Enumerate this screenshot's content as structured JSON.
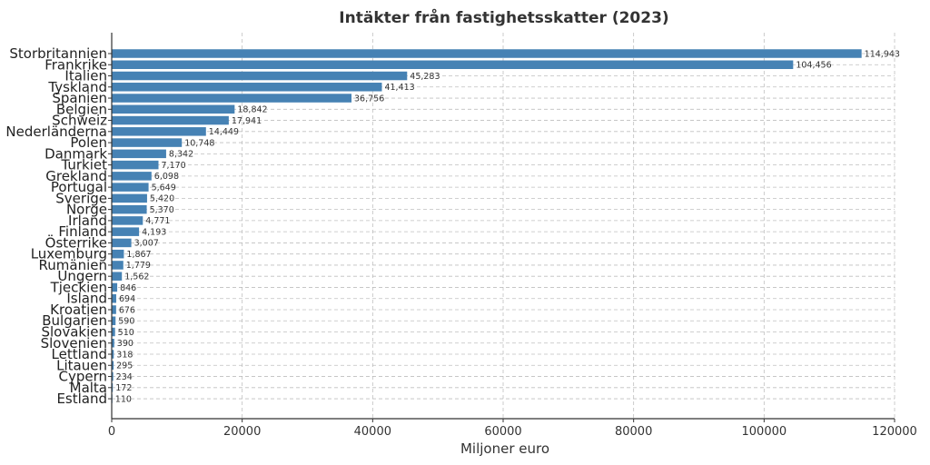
{
  "chart_data": {
    "type": "bar",
    "orientation": "horizontal",
    "title": "Intäkter från fastighetsskatter (2023)",
    "xlabel": "Miljoner euro",
    "ylabel": "",
    "xlim": [
      0,
      120000
    ],
    "xticks": [
      "0",
      "20000",
      "40000",
      "60000",
      "80000",
      "100000",
      "120000"
    ],
    "grid": true,
    "bar_color": "#4682b4",
    "categories": [
      "Storbritannien",
      "Frankrike",
      "Italien",
      "Tyskland",
      "Spanien",
      "Belgien",
      "Schweiz",
      "Nederländerna",
      "Polen",
      "Danmark",
      "Turkiet",
      "Grekland",
      "Portugal",
      "Sverige",
      "Norge",
      "Irland",
      "Finland",
      "Österrike",
      "Luxemburg",
      "Rumänien",
      "Ungern",
      "Tjeckien",
      "Island",
      "Kroatien",
      "Bulgarien",
      "Slovakien",
      "Slovenien",
      "Lettland",
      "Litauen",
      "Cypern",
      "Malta",
      "Estland"
    ],
    "values": [
      114943,
      104456,
      45283,
      41413,
      36756,
      18842,
      17941,
      14449,
      10748,
      8342,
      7170,
      6098,
      5649,
      5420,
      5370,
      4771,
      4193,
      3007,
      1867,
      1779,
      1562,
      846,
      694,
      676,
      590,
      510,
      390,
      318,
      295,
      234,
      172,
      110
    ],
    "data_labels": [
      "114,943",
      "104,456",
      "45,283",
      "41,413",
      "36,756",
      "18,842",
      "17,941",
      "14,449",
      "10,748",
      "8,342",
      "7,170",
      "6,098",
      "5,649",
      "5,420",
      "5,370",
      "4,771",
      "4,193",
      "3,007",
      "1,867",
      "1,779",
      "1,562",
      "846",
      "694",
      "676",
      "590",
      "510",
      "390",
      "318",
      "295",
      "234",
      "172",
      "110"
    ]
  }
}
